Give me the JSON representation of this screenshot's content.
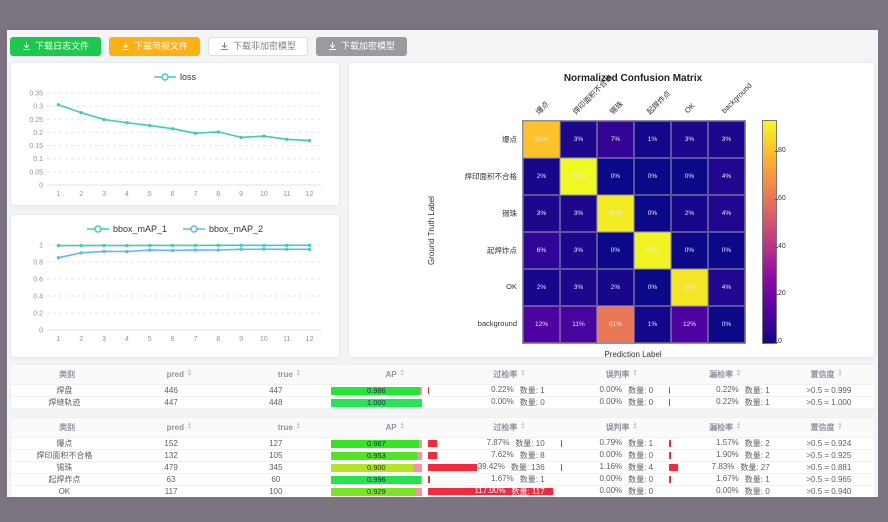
{
  "toolbar": {
    "buttons": [
      {
        "label": "下载日志文件",
        "style": "green"
      },
      {
        "label": "下载简报文件",
        "style": "orange"
      },
      {
        "label": "下载非加密模型",
        "style": "plain"
      },
      {
        "label": "下载加密模型",
        "style": "gray"
      }
    ]
  },
  "chart_data": [
    {
      "id": "loss",
      "type": "line",
      "legend": [
        "loss"
      ],
      "x": [
        1,
        2,
        3,
        4,
        5,
        6,
        7,
        8,
        9,
        10,
        11,
        12
      ],
      "series": [
        {
          "name": "loss",
          "color": "#41cdb4",
          "values": [
            0.305,
            0.275,
            0.249,
            0.237,
            0.226,
            0.214,
            0.197,
            0.202,
            0.181,
            0.186,
            0.174,
            0.169
          ]
        }
      ],
      "ylim": [
        0,
        0.35
      ],
      "yticks": [
        0,
        0.05,
        0.1,
        0.15,
        0.2,
        0.25,
        0.3,
        0.35
      ],
      "grid": true,
      "legend_position": "top"
    },
    {
      "id": "bbox_mAP",
      "type": "line",
      "legend": [
        "bbox_mAP_1",
        "bbox_mAP_2"
      ],
      "x": [
        1,
        2,
        3,
        4,
        5,
        6,
        7,
        8,
        9,
        10,
        11,
        12
      ],
      "series": [
        {
          "name": "bbox_mAP_1",
          "color": "#41cdb4",
          "values": [
            0.993,
            0.993,
            0.995,
            0.993,
            0.995,
            0.995,
            0.995,
            0.996,
            0.996,
            0.995,
            0.996,
            0.996
          ]
        },
        {
          "name": "bbox_mAP_2",
          "color": "#64b5f7",
          "values": [
            0.851,
            0.908,
            0.925,
            0.923,
            0.94,
            0.936,
            0.94,
            0.941,
            0.95,
            0.951,
            0.95,
            0.949
          ]
        }
      ],
      "ylim": [
        0,
        1
      ],
      "yticks": [
        0,
        0.2,
        0.4,
        0.6,
        0.8,
        1
      ],
      "grid": true,
      "legend_position": "top"
    },
    {
      "id": "confusion",
      "type": "heatmap",
      "title": "Normalized Confusion Matrix",
      "xlabel": "Prediction Label",
      "ylabel": "Ground Truth Label",
      "labels": [
        "爆点",
        "焊印面积不合格",
        "锡珠",
        "起焊炸点",
        "OK",
        "background"
      ],
      "unit": "%",
      "vmax": 93,
      "colorbar_ticks": [
        0,
        20,
        40,
        60,
        80
      ],
      "colormap": "plasma",
      "matrix": [
        [
          81,
          3,
          7,
          1,
          3,
          3
        ],
        [
          2,
          93,
          0,
          0,
          0,
          4
        ],
        [
          3,
          3,
          90,
          0,
          2,
          4
        ],
        [
          6,
          3,
          0,
          92,
          0,
          0
        ],
        [
          2,
          3,
          2,
          0,
          89,
          4
        ],
        [
          12,
          11,
          61,
          1,
          12,
          0
        ]
      ]
    }
  ],
  "tables": [
    {
      "headers": [
        {
          "label": "类别",
          "sortable": false
        },
        {
          "label": "pred",
          "sortable": true
        },
        {
          "label": "true",
          "sortable": true
        },
        {
          "label": "AP",
          "sortable": true
        },
        {
          "label": "过检率",
          "sortable": true
        },
        {
          "label": "误判率",
          "sortable": true
        },
        {
          "label": "漏检率",
          "sortable": true
        },
        {
          "label": "置信度",
          "sortable": true
        }
      ],
      "rows": [
        {
          "category": "焊盘",
          "pred": "446",
          "true": "447",
          "ap": {
            "label": "0.986",
            "value": 0.986
          },
          "over": {
            "rate": "0.22%",
            "count": "数量: 1",
            "value": 0.22
          },
          "mis": {
            "rate": "0.00%",
            "count": "数量: 0",
            "value": 0
          },
          "miss": {
            "rate": "0.22%",
            "count": "数量: 1",
            "value": 0.22
          },
          "conf": ">0.5 = 0.999"
        },
        {
          "category": "焊缝轨迹",
          "pred": "447",
          "true": "448",
          "ap": {
            "label": "1.000",
            "value": 1.0
          },
          "over": {
            "rate": "0.00%",
            "count": "数量: 0",
            "value": 0
          },
          "mis": {
            "rate": "0.00%",
            "count": "数量: 0",
            "value": 0
          },
          "miss": {
            "rate": "0.22%",
            "count": "数量: 1",
            "value": 0.22
          },
          "conf": ">0.5 = 1.000"
        }
      ]
    },
    {
      "headers": [
        {
          "label": "类别",
          "sortable": false
        },
        {
          "label": "pred",
          "sortable": true
        },
        {
          "label": "true",
          "sortable": true
        },
        {
          "label": "AP",
          "sortable": true
        },
        {
          "label": "过检率",
          "sortable": true
        },
        {
          "label": "误判率",
          "sortable": true
        },
        {
          "label": "漏检率",
          "sortable": true
        },
        {
          "label": "置信度",
          "sortable": true
        }
      ],
      "rows": [
        {
          "category": "爆点",
          "pred": "152",
          "true": "127",
          "ap": {
            "label": "0.967",
            "value": 0.967
          },
          "over": {
            "rate": "7.87%",
            "count": "数量: 10",
            "value": 7.87
          },
          "mis": {
            "rate": "0.79%",
            "count": "数量: 1",
            "value": 0.79
          },
          "miss": {
            "rate": "1.57%",
            "count": "数量: 2",
            "value": 1.57
          },
          "conf": ">0.5 = 0.924"
        },
        {
          "category": "焊印面积不合格",
          "pred": "132",
          "true": "105",
          "ap": {
            "label": "0.953",
            "value": 0.953
          },
          "over": {
            "rate": "7.62%",
            "count": "数量: 8",
            "value": 7.62
          },
          "mis": {
            "rate": "0.00%",
            "count": "数量: 0",
            "value": 0
          },
          "miss": {
            "rate": "1.90%",
            "count": "数量: 2",
            "value": 1.9
          },
          "conf": ">0.5 = 0.925"
        },
        {
          "category": "锡珠",
          "pred": "479",
          "true": "345",
          "ap": {
            "label": "0.900",
            "value": 0.9
          },
          "over": {
            "rate": "39.42%",
            "count": "数量: 136",
            "value": 39.42
          },
          "mis": {
            "rate": "1.16%",
            "count": "数量: 4",
            "value": 1.16
          },
          "miss": {
            "rate": "7.83%",
            "count": "数量: 27",
            "value": 7.83
          },
          "conf": ">0.5 = 0.881"
        },
        {
          "category": "起焊炸点",
          "pred": "63",
          "true": "60",
          "ap": {
            "label": "0.996",
            "value": 0.996
          },
          "over": {
            "rate": "1.67%",
            "count": "数量: 1",
            "value": 1.67
          },
          "mis": {
            "rate": "0.00%",
            "count": "数量: 0",
            "value": 0
          },
          "miss": {
            "rate": "1.67%",
            "count": "数量: 1",
            "value": 1.67
          },
          "conf": ">0.5 = 0.965"
        },
        {
          "category": "OK",
          "pred": "117",
          "true": "100",
          "ap": {
            "label": "0.929",
            "value": 0.929
          },
          "over": {
            "rate": "117.00%",
            "count": "数量: 117",
            "value": 117
          },
          "mis": {
            "rate": "0.00%",
            "count": "数量: 0",
            "value": 0
          },
          "miss": {
            "rate": "0.00%",
            "count": "数量: 0",
            "value": 0
          },
          "conf": ">0.5 = 0.940"
        }
      ]
    }
  ]
}
